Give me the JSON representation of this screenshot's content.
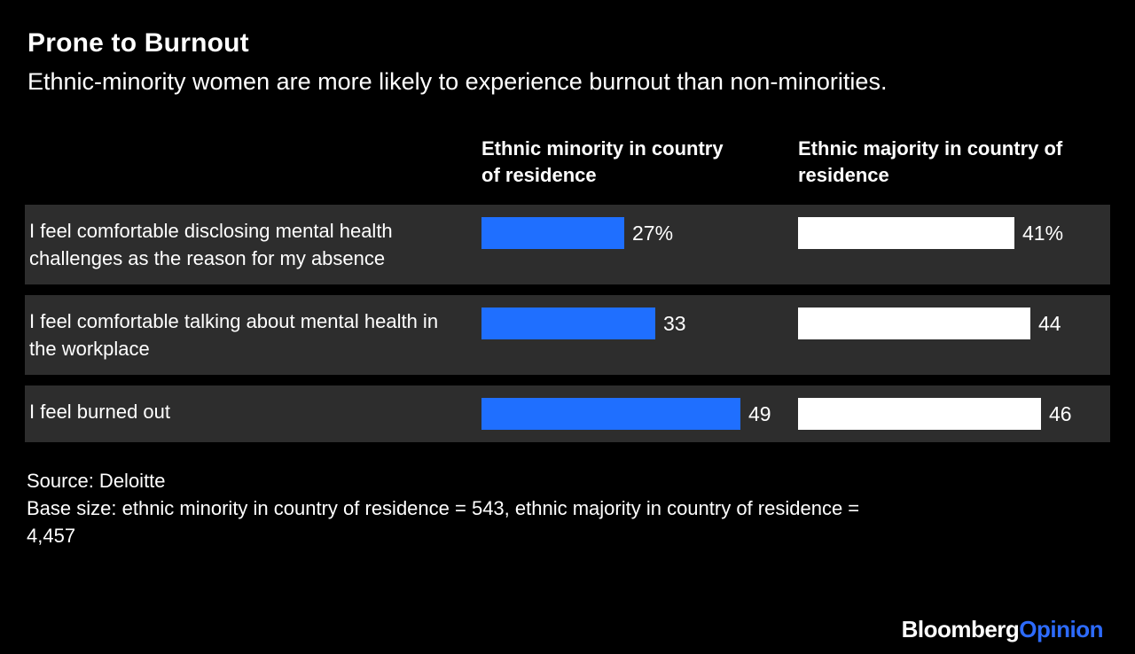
{
  "chart_data": {
    "type": "bar",
    "orientation": "horizontal",
    "title": "Prone to Burnout",
    "subtitle": "Ethnic-minority women are more likely to experience burnout than non-minorities.",
    "categories": [
      "I feel comfortable disclosing mental health challenges as the reason for my absence",
      "I feel comfortable talking about mental health in the workplace",
      "I feel burned out"
    ],
    "series": [
      {
        "name": "Ethnic minority in country of residence",
        "values": [
          27,
          33,
          49
        ],
        "labels": [
          "27%",
          "33",
          "49"
        ],
        "color": "#1f6fff"
      },
      {
        "name": "Ethnic majority in country of residence",
        "values": [
          41,
          44,
          46
        ],
        "labels": [
          "41%",
          "44",
          "46"
        ],
        "color": "#ffffff"
      }
    ],
    "xlim": [
      0,
      52
    ],
    "grid": false,
    "legend_position": "column-headers",
    "row_background": "#2d2d2d"
  },
  "footer": {
    "source": "Source: Deloitte",
    "base_size": "Base size: ethnic minority in country of residence = 543, ethnic majority in country of residence = 4,457"
  },
  "branding": {
    "brand": "Bloomberg",
    "brand_suffix": "Opinion",
    "accent_color": "#2d6bff"
  }
}
